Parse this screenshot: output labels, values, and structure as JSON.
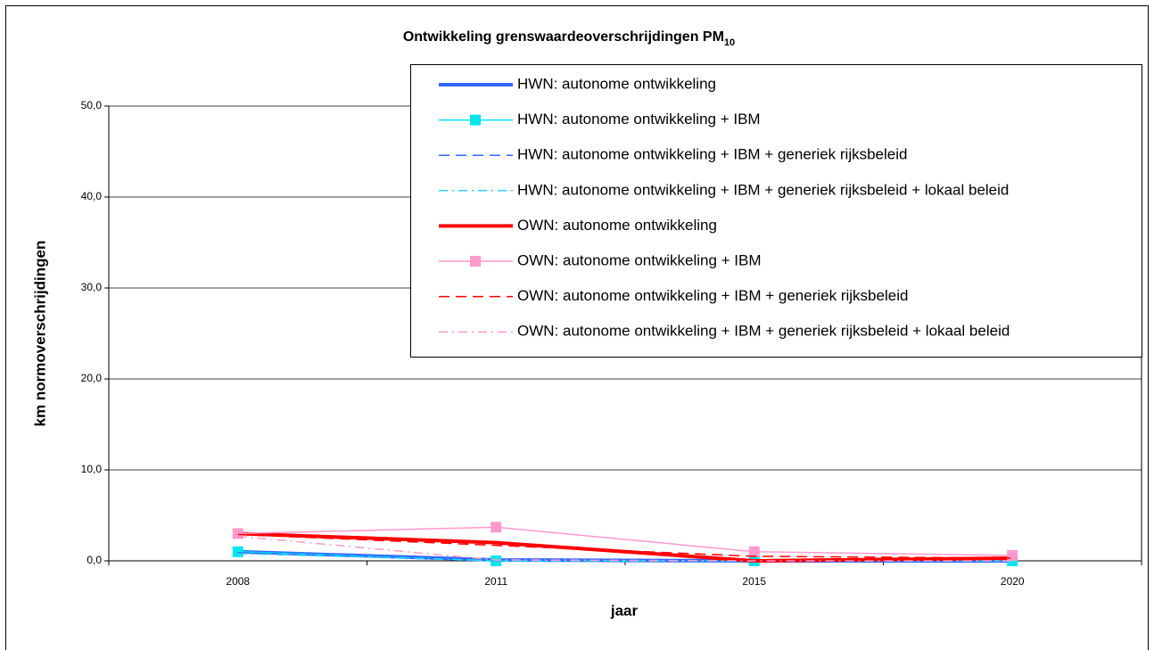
{
  "chart_data": {
    "type": "line",
    "title": "Ontwikkeling grenswaardeoverschrijdingen PM",
    "title_subscript": "10",
    "x_label": "jaar",
    "y_label": "km normoverschrijdingen",
    "categories": [
      "2008",
      "2011",
      "2015",
      "2020"
    ],
    "ylim": [
      0,
      50
    ],
    "yticks": [
      {
        "value": 0,
        "label": "0,0"
      },
      {
        "value": 10,
        "label": "10,0"
      },
      {
        "value": 20,
        "label": "20,0"
      },
      {
        "value": 30,
        "label": "30,0"
      },
      {
        "value": 40,
        "label": "40,0"
      },
      {
        "value": 50,
        "label": "50,0"
      }
    ],
    "grid": true,
    "legend": "top-right",
    "series": [
      {
        "name": "HWN: autonome ontwikkeling",
        "color": "#3366ff",
        "linewidth": 4,
        "linestyle": "solid",
        "marker": "none",
        "values": [
          1.0,
          0.1,
          0.0,
          0.0
        ]
      },
      {
        "name": "HWN: autonome ontwikkeling + IBM",
        "color": "#00e5ee",
        "linewidth": 1.5,
        "linestyle": "solid",
        "marker": "square",
        "values": [
          1.0,
          0.0,
          0.0,
          0.0
        ]
      },
      {
        "name": "HWN: autonome ontwikkeling + IBM + generiek rijksbeleid",
        "color": "#3366ff",
        "linewidth": 1.5,
        "linestyle": "dashed",
        "marker": "none",
        "values": [
          0.9,
          0.0,
          0.0,
          0.0
        ]
      },
      {
        "name": "HWN: autonome ontwikkeling + IBM + generiek rijksbeleid + lokaal beleid",
        "color": "#33ccff",
        "linewidth": 1.5,
        "linestyle": "dashdot",
        "marker": "none",
        "values": [
          0.8,
          0.0,
          0.0,
          0.0
        ]
      },
      {
        "name": "OWN: autonome ontwikkeling",
        "color": "#ff0000",
        "linewidth": 4,
        "linestyle": "solid",
        "marker": "none",
        "values": [
          3.0,
          2.0,
          0.0,
          0.3
        ]
      },
      {
        "name": "OWN: autonome ontwikkeling + IBM",
        "color": "#ff99cc",
        "linewidth": 1.5,
        "linestyle": "solid",
        "marker": "square",
        "values": [
          3.0,
          3.7,
          1.0,
          0.6
        ]
      },
      {
        "name": "OWN: autonome ontwikkeling + IBM + generiek rijksbeleid",
        "color": "#ff0000",
        "linewidth": 1.5,
        "linestyle": "dashed",
        "marker": "none",
        "values": [
          2.9,
          1.7,
          0.5,
          0.3
        ]
      },
      {
        "name": "OWN: autonome ontwikkeling + IBM + generiek rijksbeleid + lokaal beleid",
        "color": "#ff99cc",
        "linewidth": 1.5,
        "linestyle": "dashdot",
        "marker": "none",
        "values": [
          2.7,
          0.1,
          0.0,
          0.0
        ]
      }
    ]
  }
}
